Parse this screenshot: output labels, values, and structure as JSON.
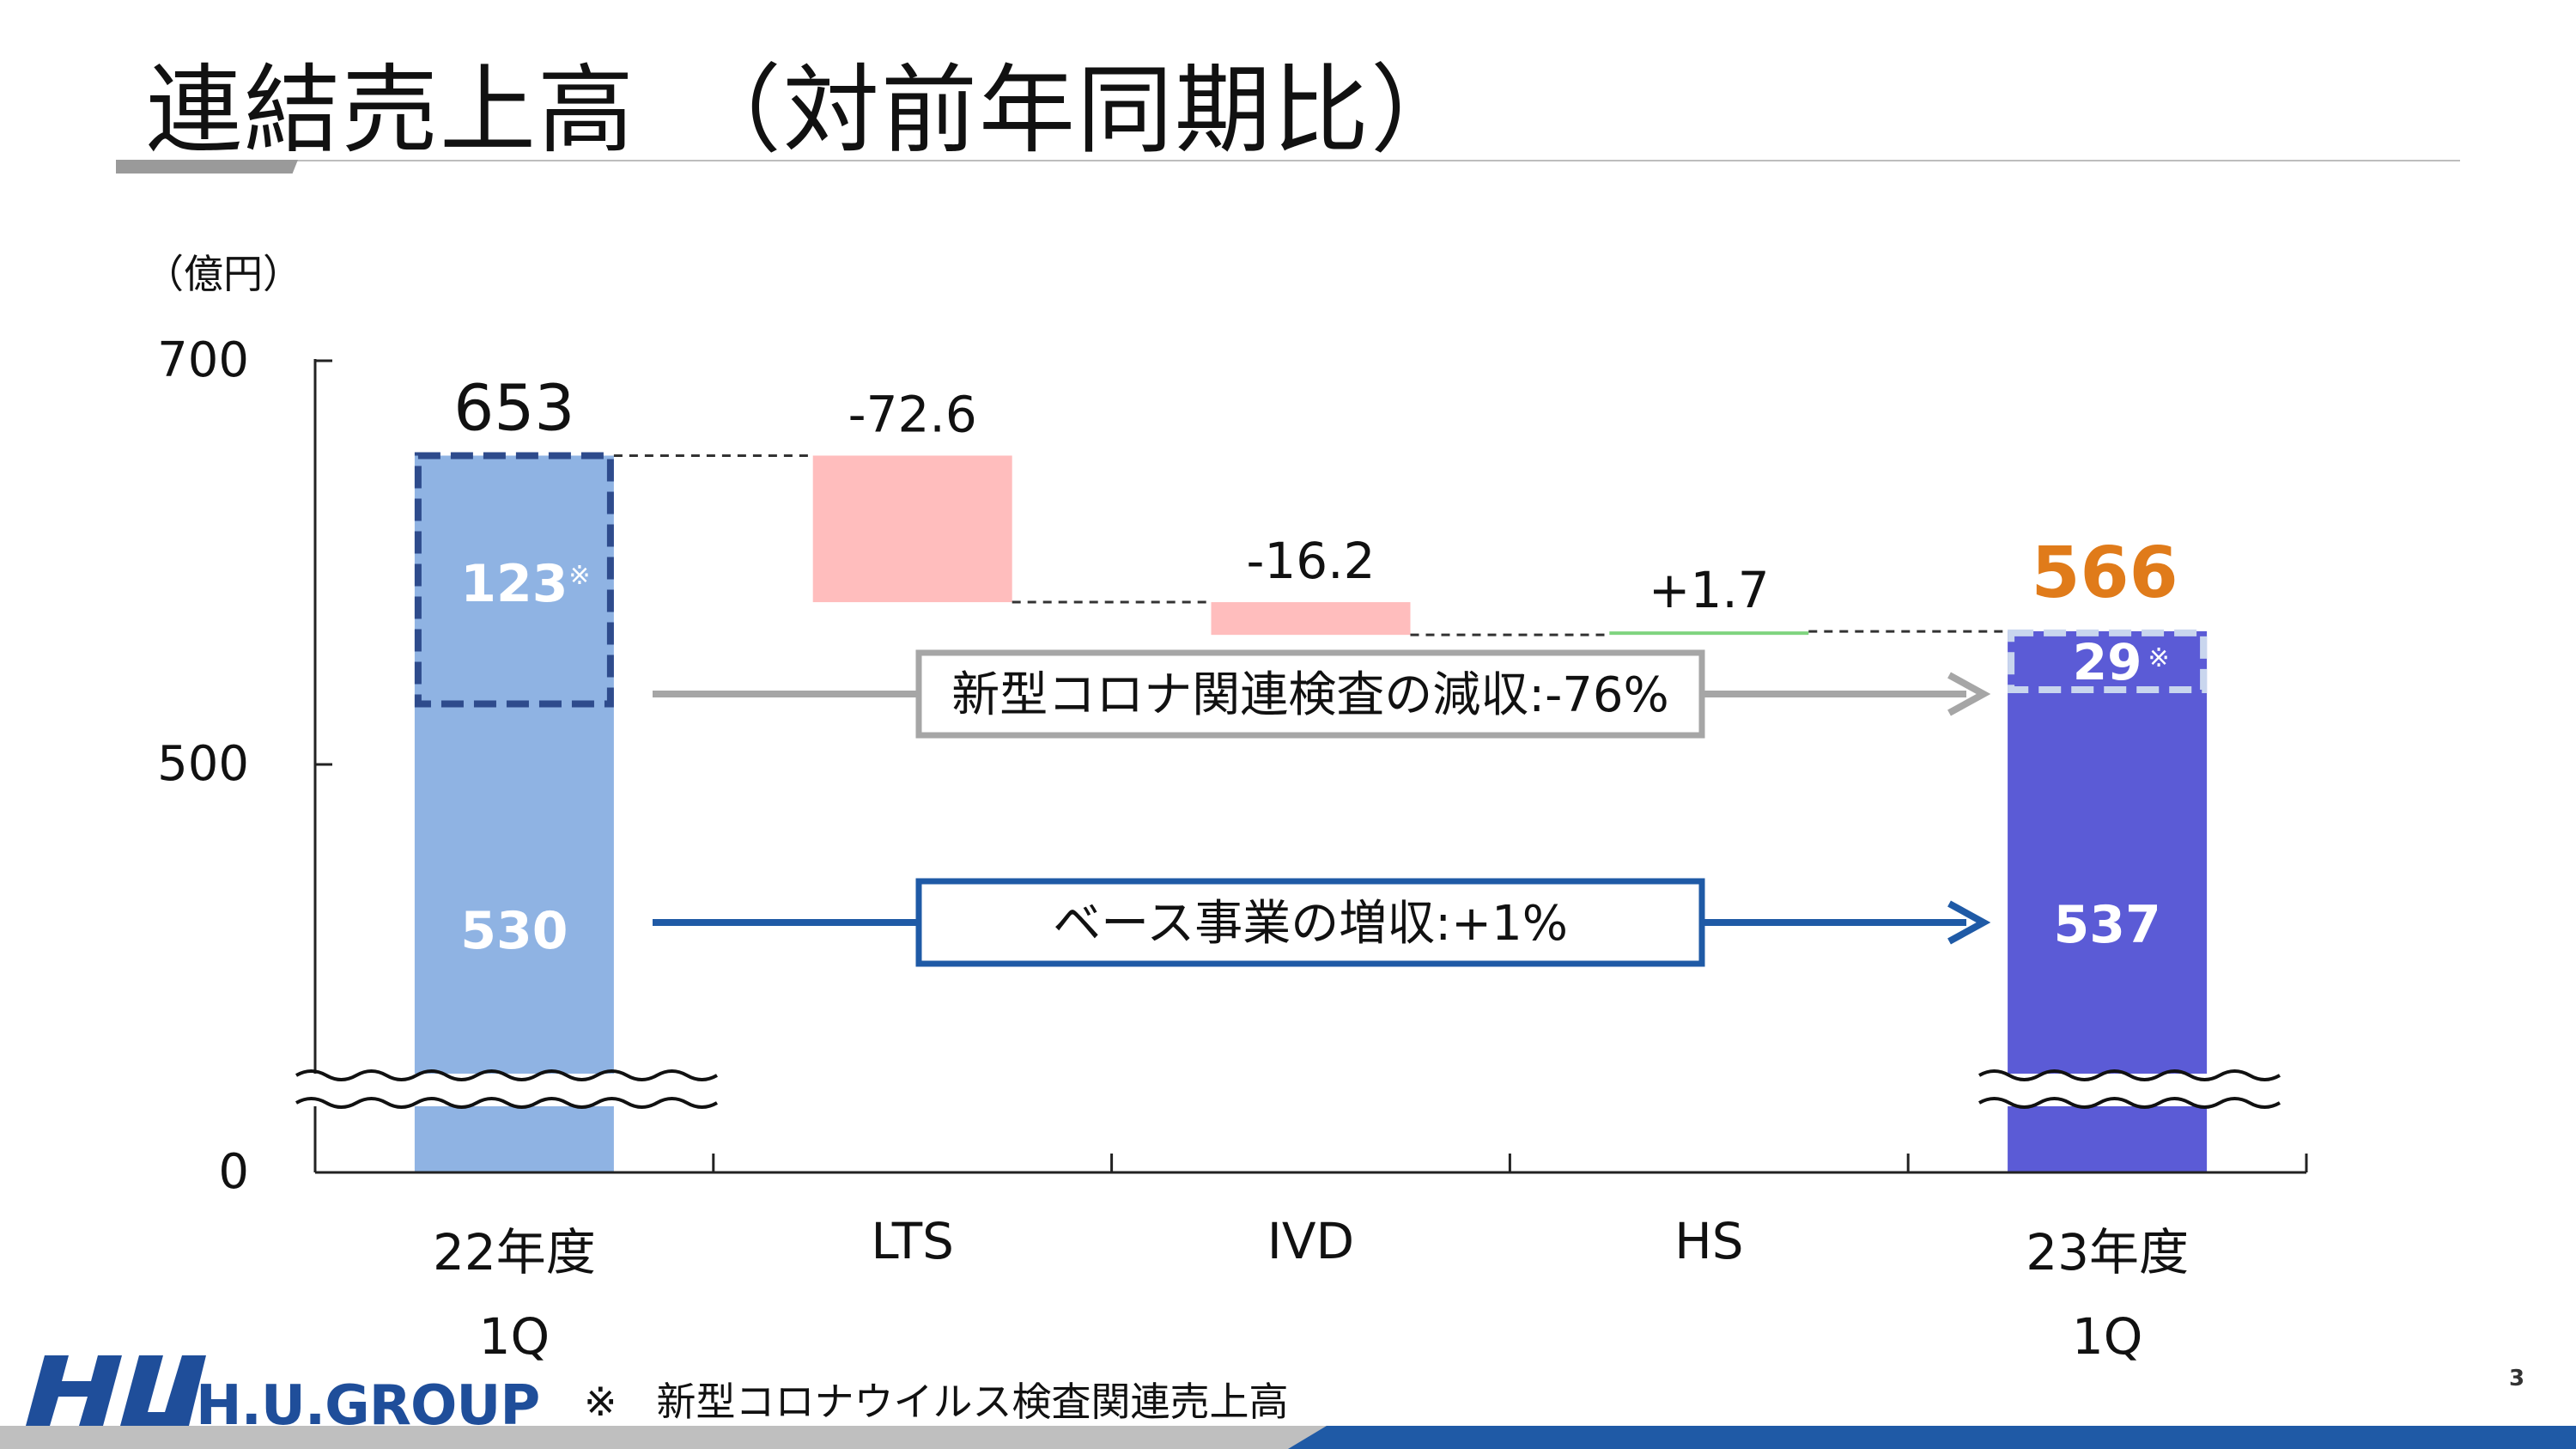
{
  "slide": {
    "title": "連結売上高　（対前年同期比）",
    "footnote": "※　新型コロナウイルス検査関連売上高",
    "page_number": "3",
    "logo_text": "H.U.GROUP"
  },
  "chart_data": {
    "type": "waterfall",
    "unit_label": "（億円）",
    "y_ticks": [
      "700",
      "500",
      "0"
    ],
    "axis_break": true,
    "categories": [
      {
        "label": [
          "22年度",
          "1Q"
        ]
      },
      {
        "label": [
          "LTS"
        ]
      },
      {
        "label": [
          "IVD"
        ]
      },
      {
        "label": [
          "HS"
        ]
      },
      {
        "label": [
          "23年度",
          "1Q"
        ]
      }
    ],
    "totals": [
      {
        "category": "22年度 1Q",
        "value": 653,
        "label": "653",
        "segments": [
          {
            "name": "base",
            "value": 530,
            "label": "530"
          },
          {
            "name": "covid",
            "value": 123,
            "label": "123",
            "mark": "※"
          }
        ]
      },
      {
        "category": "23年度 1Q",
        "value": 566,
        "label": "566",
        "segments": [
          {
            "name": "base",
            "value": 537,
            "label": "537"
          },
          {
            "name": "covid",
            "value": 29,
            "label": "29",
            "mark": "※"
          }
        ]
      }
    ],
    "changes": [
      {
        "category": "LTS",
        "value": -72.6,
        "label": "-72.6"
      },
      {
        "category": "IVD",
        "value": -16.2,
        "label": "-16.2"
      },
      {
        "category": "HS",
        "value": 1.7,
        "label": "+1.7"
      }
    ],
    "annotations": [
      {
        "text": "新型コロナ関連検査の減収:-76%",
        "color": "#a6a6a6"
      },
      {
        "text": "ベース事業の増収:+1%",
        "color": "#1f5aa6"
      }
    ],
    "colors": {
      "base_22": "#8fb3e3",
      "covid_22_border": "#2e4b8c",
      "base_23": "#5b5bd6",
      "covid_23_border": "#c9d6ee",
      "decrease": "#ffbdbd",
      "increase": "#7fd47f",
      "total_23_label": "#e07b1a"
    }
  }
}
